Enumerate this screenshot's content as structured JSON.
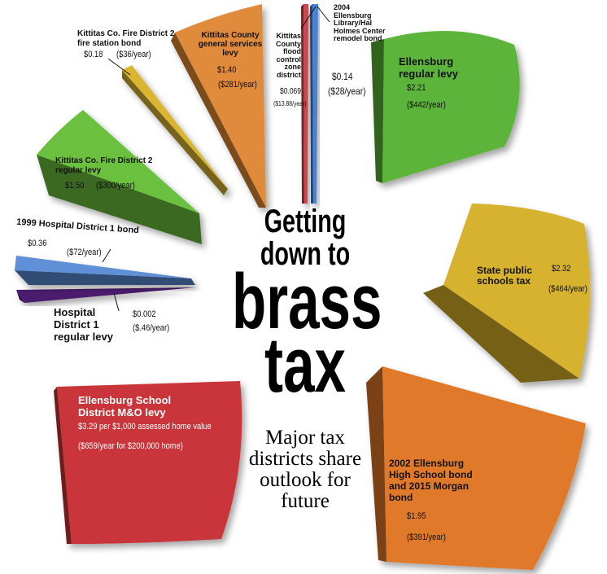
{
  "chart_data": {
    "type": "pie",
    "title": "Getting down to brass tax",
    "title_parts": [
      "Getting",
      "down to",
      "brass",
      "tax"
    ],
    "subtitle": "Major tax districts share outlook for future",
    "slices": [
      {
        "name": "Ellensburg regular levy",
        "rate": "$2.21",
        "annual": "($442/year)",
        "value": 2.21,
        "annual_value": 442,
        "color": "#5cb43a"
      },
      {
        "name": "State public schools tax",
        "rate": "$2.32",
        "annual": "($464/year)",
        "value": 2.32,
        "annual_value": 464,
        "color": "#d7b22f"
      },
      {
        "name": "2002 Ellensburg High School bond and 2015 Morgan bond",
        "rate": "$1.95",
        "annual": "($391/year)",
        "value": 1.95,
        "annual_value": 391,
        "color": "#e07a2c"
      },
      {
        "name": "Ellensburg School District M&O levy",
        "rate": "$3.29 per $1,000 assessed home value",
        "annual": "($659/year for $200,000 home)",
        "value": 3.29,
        "annual_value": 659,
        "color": "#c9343a"
      },
      {
        "name": "Hospital District 1 regular levy",
        "rate": "$0.002",
        "annual": "($.46/year)",
        "value": 0.002,
        "annual_value": 0.46,
        "color": "#4b1f6e"
      },
      {
        "name": "1999 Hospital District 1 bond",
        "rate": "$0.36",
        "annual": "($72/year)",
        "value": 0.36,
        "annual_value": 72,
        "color": "#5e8fd6"
      },
      {
        "name": "Kittitas Co. Fire District 2 regular levy",
        "rate": "$1.50",
        "annual": "($300/year)",
        "value": 1.5,
        "annual_value": 300,
        "color": "#6cc040"
      },
      {
        "name": "Kittitas Co. Fire District 2 fire station bond",
        "rate": "$0.18",
        "annual": "($36/year)",
        "value": 0.18,
        "annual_value": 36,
        "color": "#d9b530"
      },
      {
        "name": "Kittitas County general services levy",
        "rate": "$1.40",
        "annual": "($281/year)",
        "value": 1.4,
        "annual_value": 281,
        "color": "#e08a3a"
      },
      {
        "name": "Kittitas County flood control zone district",
        "rate": "$0.069",
        "annual": "($13.88/year)",
        "value": 0.069,
        "annual_value": 13.88,
        "color": "#c9474e"
      },
      {
        "name": "2004 Ellensburg Library/Hal Holmes Center remodel bond",
        "rate": "$0.14",
        "annual": "($28/year)",
        "value": 0.14,
        "annual_value": 28,
        "color": "#4a82d0"
      }
    ]
  }
}
